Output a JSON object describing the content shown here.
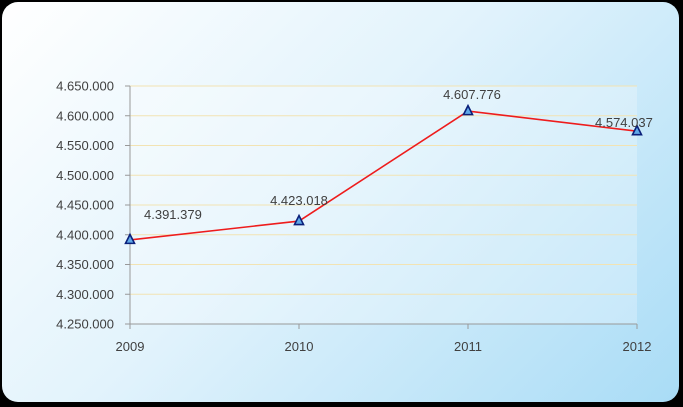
{
  "colors": {
    "line": "#ee1c1c",
    "marker_fill": "#5fa8e8",
    "marker_stroke": "#0a1f7a",
    "grid": "#f2e3b3",
    "axis": "#999999",
    "label_text": "#404040"
  },
  "chart_data": {
    "type": "line",
    "title": "",
    "xlabel": "",
    "ylabel": "",
    "categories": [
      "2009",
      "2010",
      "2011",
      "2012"
    ],
    "series": [
      {
        "values": [
          4391379,
          4423018,
          4607776,
          4574037
        ],
        "labels": [
          "4.391.379",
          "4.423.018",
          "4.607.776",
          "4.574.037"
        ],
        "marker": "triangle"
      }
    ],
    "ylim": [
      4250000,
      4650000
    ],
    "yticks": [
      4250000,
      4300000,
      4350000,
      4400000,
      4450000,
      4500000,
      4550000,
      4600000,
      4650000
    ],
    "ytick_labels": [
      "4.250.000",
      "4.300.000",
      "4.350.000",
      "4.400.000",
      "4.450.000",
      "4.500.000",
      "4.550.000",
      "4.600.000",
      "4.650.000"
    ],
    "grid": true,
    "legend": "none"
  }
}
